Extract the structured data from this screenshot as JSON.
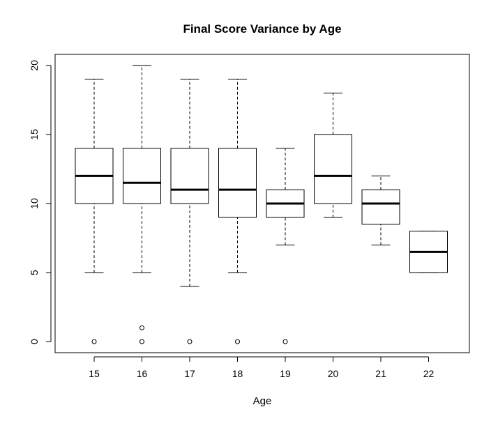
{
  "chart_data": {
    "type": "boxplot",
    "title": "Final Score Variance by Age",
    "xlabel": "Age",
    "ylabel": "",
    "ylim": [
      -0.8,
      20.8
    ],
    "yticks": [
      "0",
      "5",
      "10",
      "15",
      "20"
    ],
    "categories": [
      "15",
      "16",
      "17",
      "18",
      "19",
      "20",
      "21",
      "22"
    ],
    "boxes": [
      {
        "whisker_low": 5,
        "q1": 10,
        "median": 12,
        "q3": 14,
        "whisker_high": 19,
        "outliers": [
          0
        ]
      },
      {
        "whisker_low": 5,
        "q1": 10,
        "median": 11.5,
        "q3": 14,
        "whisker_high": 20,
        "outliers": [
          0,
          1
        ]
      },
      {
        "whisker_low": 4,
        "q1": 10,
        "median": 11,
        "q3": 14,
        "whisker_high": 19,
        "outliers": [
          0
        ]
      },
      {
        "whisker_low": 5,
        "q1": 9,
        "median": 11,
        "q3": 14,
        "whisker_high": 19,
        "outliers": [
          0
        ]
      },
      {
        "whisker_low": 7,
        "q1": 9,
        "median": 10,
        "q3": 11,
        "whisker_high": 14,
        "outliers": [
          0
        ]
      },
      {
        "whisker_low": 9,
        "q1": 10,
        "median": 12,
        "q3": 15,
        "whisker_high": 18,
        "outliers": []
      },
      {
        "whisker_low": 7,
        "q1": 8.5,
        "median": 10,
        "q3": 11,
        "whisker_high": 12,
        "outliers": []
      },
      {
        "whisker_low": 5,
        "q1": 5,
        "median": 6.5,
        "q3": 8,
        "whisker_high": 8,
        "outliers": []
      }
    ],
    "grid": false,
    "legend": "none",
    "colors": {
      "box_fill": "#ffffff",
      "stroke": "#000000"
    }
  }
}
